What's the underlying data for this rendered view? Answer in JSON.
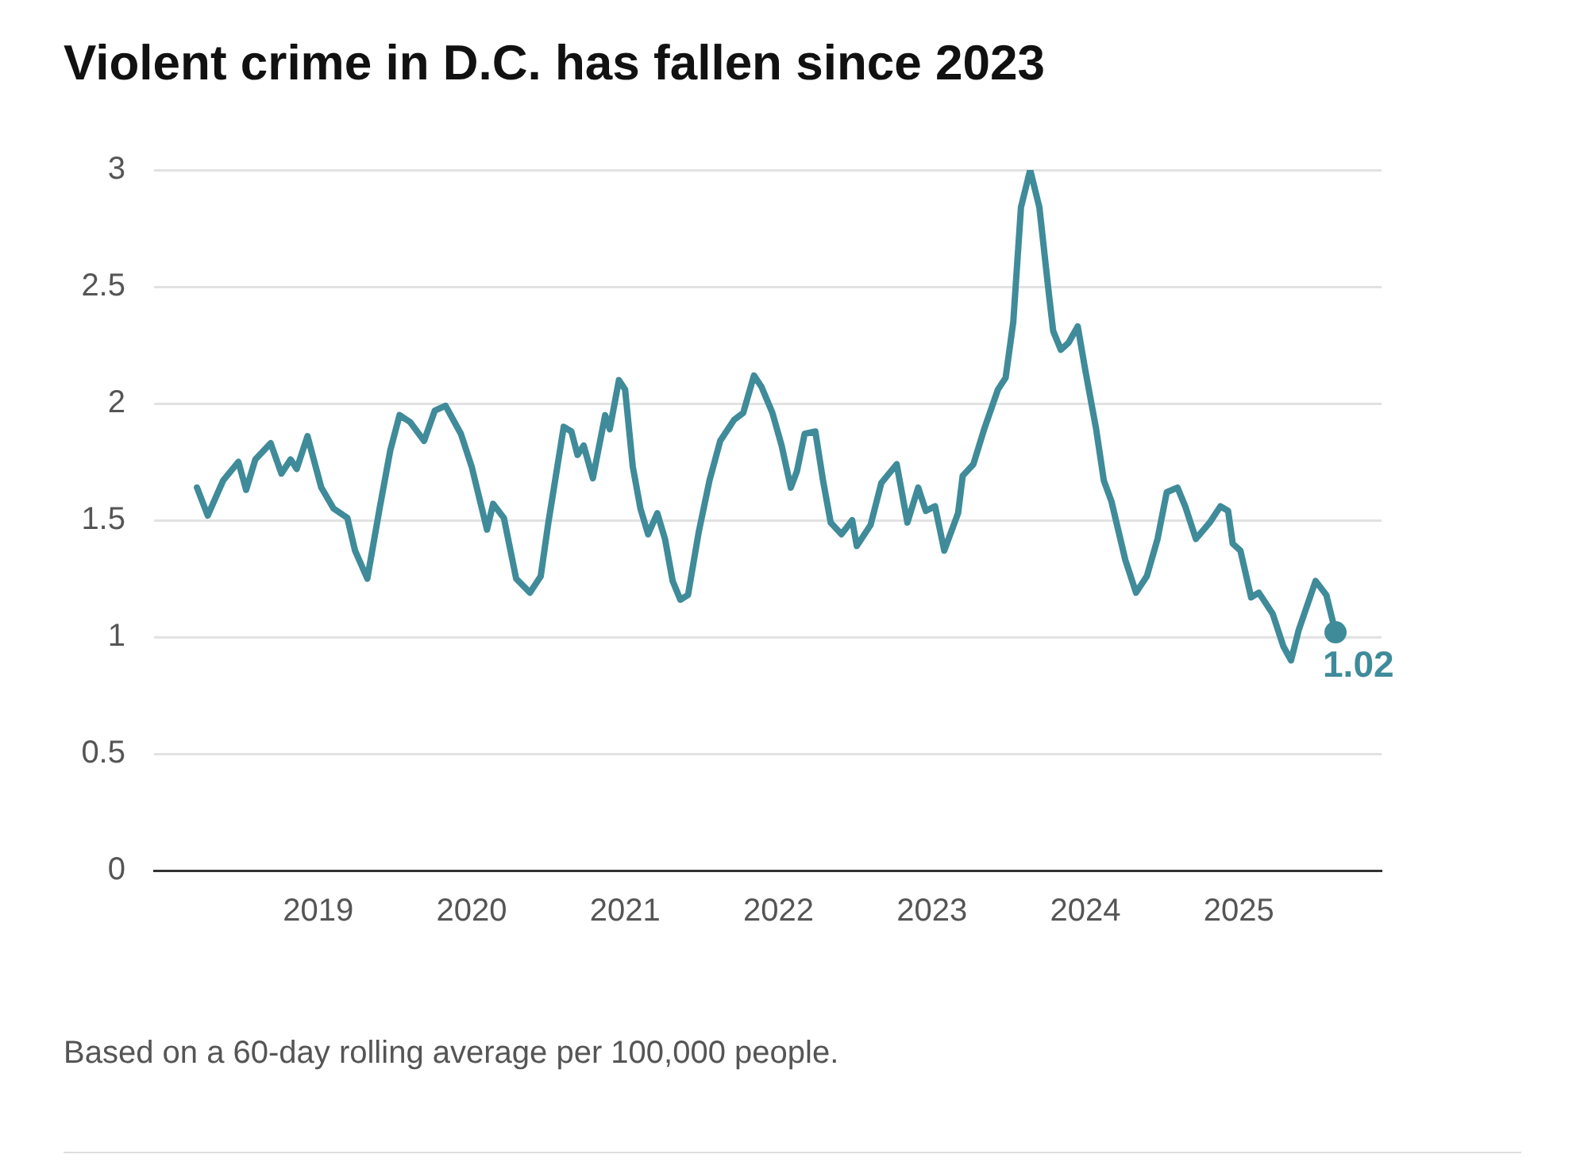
{
  "chart_data": {
    "type": "line",
    "title": "Violent crime in D.C. has fallen since 2023",
    "annotations": [
      "Based on a 60-day rolling average per 100,000 people."
    ],
    "xlim": [
      2017.93,
      2025.93
    ],
    "xticks": [
      2019,
      2020,
      2021,
      2022,
      2023,
      2024,
      2025
    ],
    "ylim": [
      0,
      3
    ],
    "yticks": [
      0,
      0.5,
      1,
      1.5,
      2,
      2.5,
      3
    ],
    "grid": "y",
    "series": [
      {
        "color": "#3f8b9a",
        "x": [
          2018.21,
          2018.28,
          2018.38,
          2018.48,
          2018.53,
          2018.59,
          2018.69,
          2018.76,
          2018.82,
          2018.86,
          2018.93,
          2019.02,
          2019.1,
          2019.19,
          2019.24,
          2019.32,
          2019.4,
          2019.47,
          2019.53,
          2019.6,
          2019.69,
          2019.76,
          2019.83,
          2019.93,
          2020.0,
          2020.1,
          2020.14,
          2020.21,
          2020.29,
          2020.38,
          2020.45,
          2020.5,
          2020.6,
          2020.65,
          2020.69,
          2020.73,
          2020.79,
          2020.87,
          2020.9,
          2020.96,
          2021.0,
          2021.05,
          2021.1,
          2021.15,
          2021.21,
          2021.26,
          2021.31,
          2021.36,
          2021.41,
          2021.48,
          2021.55,
          2021.62,
          2021.71,
          2021.77,
          2021.84,
          2021.89,
          2021.96,
          2022.02,
          2022.08,
          2022.12,
          2022.17,
          2022.24,
          2022.29,
          2022.34,
          2022.41,
          2022.48,
          2022.51,
          2022.6,
          2022.67,
          2022.77,
          2022.84,
          2022.91,
          2022.96,
          2023.02,
          2023.08,
          2023.17,
          2023.2,
          2023.27,
          2023.34,
          2023.43,
          2023.48,
          2023.53,
          2023.58,
          2023.64,
          2023.7,
          2023.76,
          2023.79,
          2023.84,
          2023.89,
          2023.95,
          2024.0,
          2024.07,
          2024.12,
          2024.17,
          2024.26,
          2024.33,
          2024.4,
          2024.47,
          2024.53,
          2024.6,
          2024.65,
          2024.72,
          2024.81,
          2024.88,
          2024.93,
          2024.96,
          2025.01,
          2025.08,
          2025.13,
          2025.22,
          2025.29,
          2025.34,
          2025.39,
          2025.5,
          2025.57,
          2025.63
        ],
        "values": [
          1.64,
          1.52,
          1.67,
          1.75,
          1.63,
          1.76,
          1.83,
          1.7,
          1.76,
          1.72,
          1.86,
          1.64,
          1.55,
          1.51,
          1.37,
          1.25,
          1.55,
          1.8,
          1.95,
          1.92,
          1.84,
          1.97,
          1.99,
          1.87,
          1.73,
          1.46,
          1.57,
          1.51,
          1.25,
          1.19,
          1.26,
          1.49,
          1.9,
          1.88,
          1.78,
          1.82,
          1.68,
          1.95,
          1.89,
          2.1,
          2.06,
          1.73,
          1.55,
          1.44,
          1.53,
          1.42,
          1.24,
          1.16,
          1.18,
          1.45,
          1.67,
          1.84,
          1.93,
          1.96,
          2.12,
          2.07,
          1.96,
          1.82,
          1.64,
          1.71,
          1.87,
          1.88,
          1.67,
          1.49,
          1.44,
          1.5,
          1.39,
          1.48,
          1.66,
          1.74,
          1.49,
          1.64,
          1.54,
          1.56,
          1.37,
          1.53,
          1.69,
          1.74,
          1.89,
          2.06,
          2.11,
          2.35,
          2.84,
          3.0,
          2.84,
          2.48,
          2.31,
          2.23,
          2.26,
          2.33,
          2.14,
          1.89,
          1.67,
          1.58,
          1.33,
          1.19,
          1.26,
          1.42,
          1.62,
          1.64,
          1.56,
          1.42,
          1.49,
          1.56,
          1.54,
          1.4,
          1.37,
          1.17,
          1.19,
          1.1,
          0.96,
          0.9,
          1.03,
          1.24,
          1.18,
          1.02
        ],
        "value_labels": [
          null,
          null,
          null,
          null,
          null,
          null,
          null,
          null,
          null,
          null,
          null,
          null,
          null,
          null,
          null,
          null,
          null,
          null,
          null,
          null,
          null,
          null,
          null,
          null,
          null,
          null,
          null,
          null,
          null,
          null,
          null,
          null,
          null,
          null,
          null,
          null,
          null,
          null,
          null,
          null,
          null,
          null,
          null,
          null,
          null,
          null,
          null,
          null,
          null,
          null,
          null,
          null,
          null,
          null,
          null,
          null,
          null,
          null,
          null,
          null,
          null,
          null,
          null,
          null,
          null,
          null,
          null,
          null,
          null,
          null,
          null,
          null,
          null,
          null,
          null,
          null,
          null,
          null,
          null,
          null,
          null,
          null,
          null,
          null,
          null,
          null,
          null,
          null,
          null,
          null,
          null,
          null,
          null,
          null,
          null,
          null,
          null,
          null,
          null,
          null,
          null,
          null,
          null,
          null,
          null,
          null,
          null,
          null,
          null,
          null,
          null,
          null,
          null,
          null,
          null,
          "1.02"
        ]
      }
    ]
  }
}
